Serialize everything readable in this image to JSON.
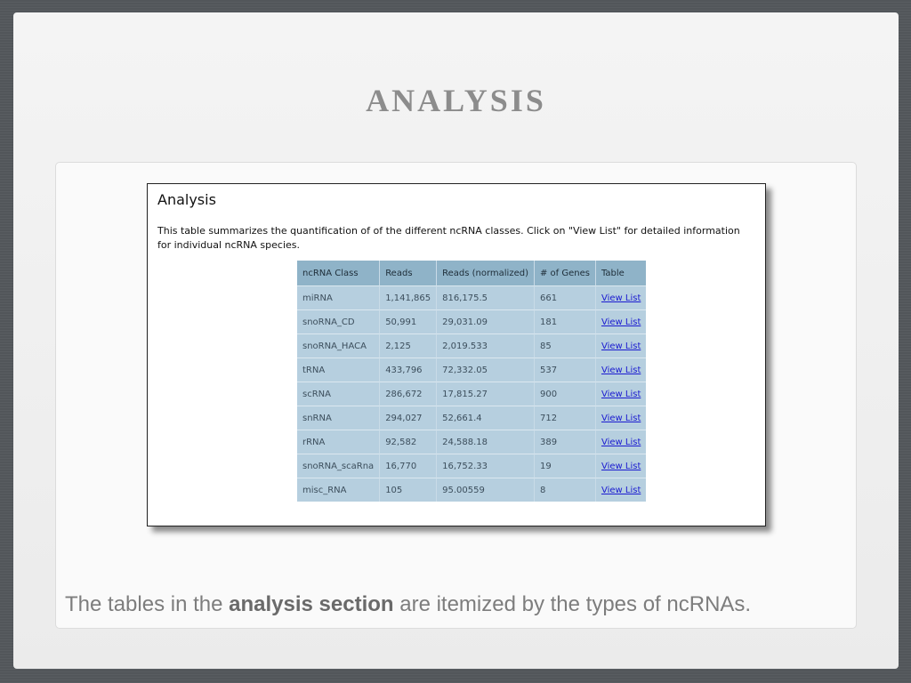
{
  "slide": {
    "title": "ANALYSIS",
    "caption": {
      "prefix": "The tables in the ",
      "bold": "analysis section",
      "suffix": " are itemized by the types of ncRNAs."
    }
  },
  "screenshot": {
    "heading": "Analysis",
    "description": "This table summarizes the quantification of of the different ncRNA classes. Click on \"View List\" for detailed information for individual ncRNA species.",
    "table": {
      "columns": [
        "ncRNA Class",
        "Reads",
        "Reads (normalized)",
        "# of Genes",
        "Table"
      ],
      "rows": [
        {
          "cls": "miRNA",
          "reads": "1,141,865",
          "norm": "816,175.5",
          "genes": "661",
          "link": "View List"
        },
        {
          "cls": "snoRNA_CD",
          "reads": "50,991",
          "norm": "29,031.09",
          "genes": "181",
          "link": "View List"
        },
        {
          "cls": "snoRNA_HACA",
          "reads": "2,125",
          "norm": "2,019.533",
          "genes": "85",
          "link": "View List"
        },
        {
          "cls": "tRNA",
          "reads": "433,796",
          "norm": "72,332.05",
          "genes": "537",
          "link": "View List"
        },
        {
          "cls": "scRNA",
          "reads": "286,672",
          "norm": "17,815.27",
          "genes": "900",
          "link": "View List"
        },
        {
          "cls": "snRNA",
          "reads": "294,027",
          "norm": "52,661.4",
          "genes": "712",
          "link": "View List"
        },
        {
          "cls": "rRNA",
          "reads": "92,582",
          "norm": "24,588.18",
          "genes": "389",
          "link": "View List"
        },
        {
          "cls": "snoRNA_scaRna",
          "reads": "16,770",
          "norm": "16,752.33",
          "genes": "19",
          "link": "View List"
        },
        {
          "cls": "misc_RNA",
          "reads": "105",
          "norm": "95.00559",
          "genes": "8",
          "link": "View List"
        }
      ]
    }
  }
}
